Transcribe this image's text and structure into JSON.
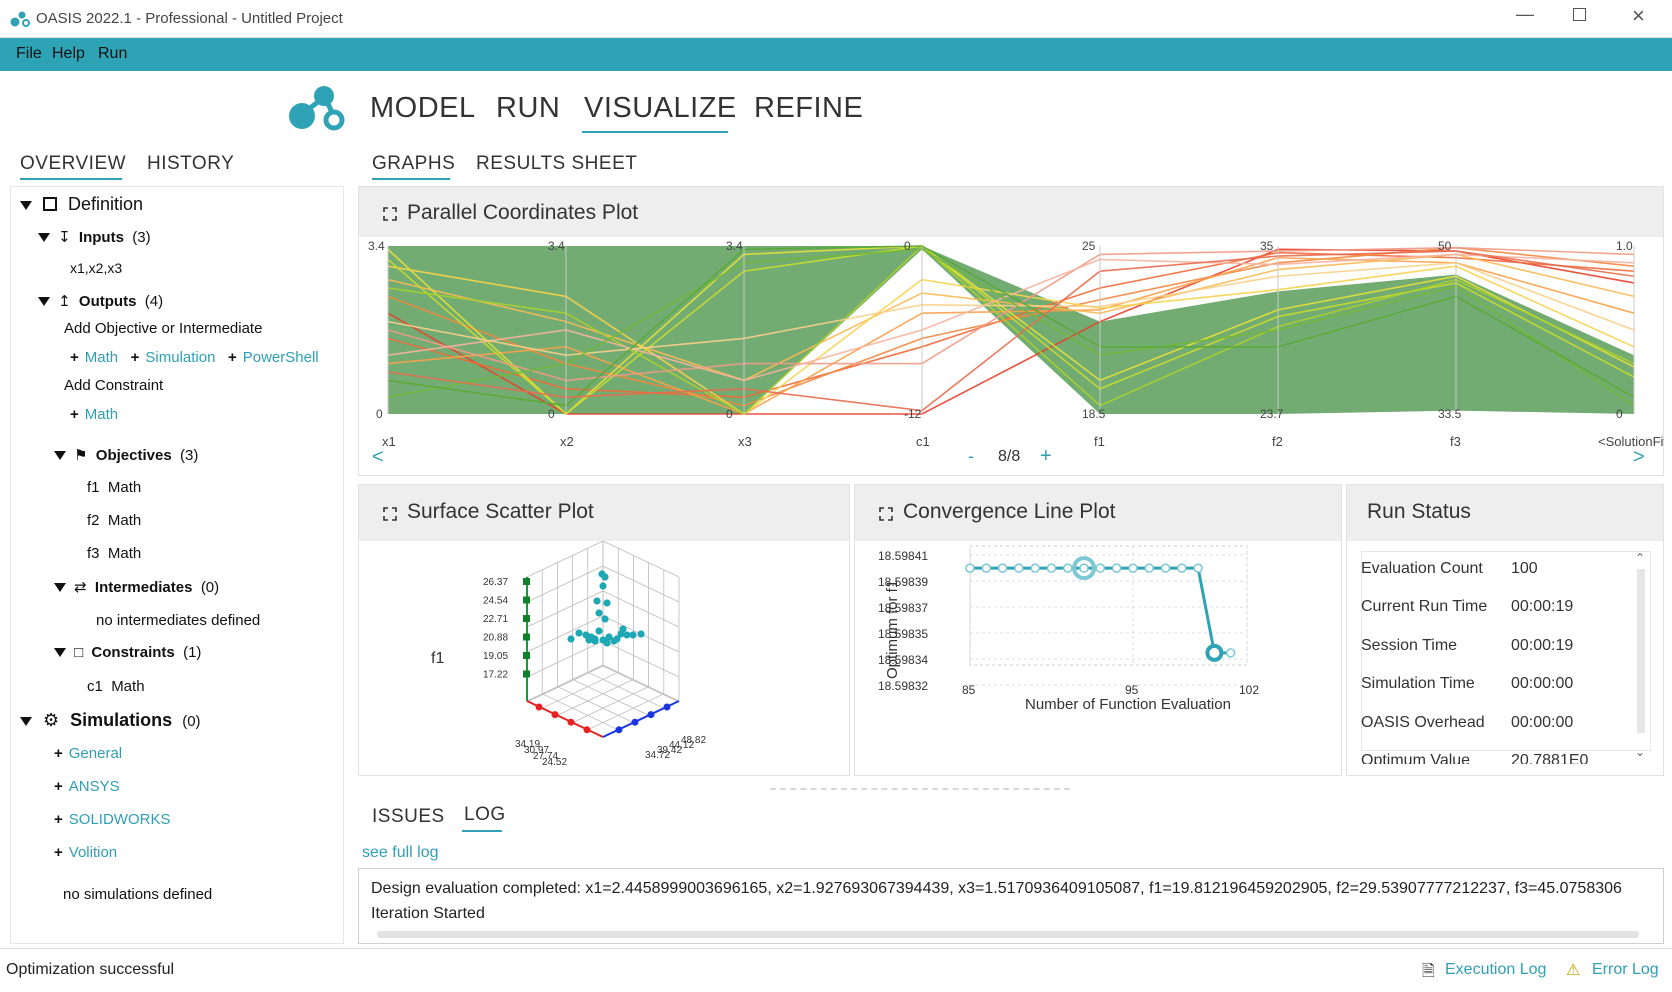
{
  "window": {
    "title": "OASIS 2022.1 - Professional - Untitled Project",
    "controls": [
      "minimize-icon",
      "maximize-icon",
      "close-icon"
    ]
  },
  "menu": [
    "File",
    "Help",
    "Run"
  ],
  "nav": {
    "tabs": [
      "MODEL",
      "RUN",
      "VISUALIZE",
      "REFINE"
    ],
    "active": "VISUALIZE"
  },
  "left_tabs": {
    "tabs": [
      "OVERVIEW",
      "HISTORY"
    ],
    "active": "OVERVIEW"
  },
  "tree": {
    "definition": "Definition",
    "inputs": "Inputs",
    "inputs_count": "(3)",
    "inputs_value": "x1,x2,x3",
    "outputs": "Outputs",
    "outputs_count": "(4)",
    "add_objective": "Add Objective or Intermediate",
    "objective_links": [
      "Math",
      "Simulation",
      "PowerShell"
    ],
    "add_constraint": "Add Constraint",
    "constraint_link": "Math",
    "objectives": "Objectives",
    "objectives_count": "(3)",
    "objective_items": [
      {
        "name": "f1",
        "type": "Math"
      },
      {
        "name": "f2",
        "type": "Math"
      },
      {
        "name": "f3",
        "type": "Math"
      }
    ],
    "intermediates": "Intermediates",
    "intermediates_count": "(0)",
    "intermediates_empty": "no intermediates defined",
    "constraints": "Constraints",
    "constraints_count": "(1)",
    "constraint_item": {
      "name": "c1",
      "type": "Math"
    },
    "simulations": "Simulations",
    "simulations_count": "(0)",
    "simulation_links": [
      "General",
      "ANSYS",
      "SOLIDWORKS",
      "Volition"
    ],
    "simulations_empty": "no simulations defined"
  },
  "main_tabs": {
    "tabs": [
      "GRAPHS",
      "RESULTS SHEET"
    ],
    "active": "GRAPHS"
  },
  "parallel": {
    "title": "Parallel Coordinates Plot",
    "axes": [
      {
        "label": "x1",
        "max": "3.4",
        "min": "0"
      },
      {
        "label": "x2",
        "max": "3.4",
        "min": "0"
      },
      {
        "label": "x3",
        "max": "3.4",
        "min": "0"
      },
      {
        "label": "c1",
        "max": "0",
        "min": "-12"
      },
      {
        "label": "f1",
        "max": "25",
        "min": "18.5"
      },
      {
        "label": "f2",
        "max": "35",
        "min": "23.7"
      },
      {
        "label": "f3",
        "max": "50",
        "min": "33.5"
      },
      {
        "label": "<SolutionFitn",
        "max": "1.0",
        "min": "0"
      }
    ],
    "pager": "8/8",
    "prev": "<",
    "next": ">",
    "minus": "-",
    "plus": "+"
  },
  "scatter": {
    "title": "Surface Scatter Plot",
    "zlabel": "f1",
    "z_ticks": [
      "26.37",
      "24.54",
      "22.71",
      "20.88",
      "19.05",
      "17.22"
    ],
    "x_ticks": [
      "34.19",
      "30.97",
      "27.74",
      "24.52"
    ],
    "y_ticks": [
      "48.82",
      "44.12",
      "39.42",
      "34.72"
    ]
  },
  "convergence": {
    "title": "Convergence Line Plot",
    "ylabel": "Optimum for f1",
    "xlabel": "Number of Function Evaluation",
    "y_ticks": [
      "18.59841",
      "18.59839",
      "18.59837",
      "18.59835",
      "18.59834",
      "18.59832"
    ],
    "x_ticks": [
      "85",
      "95",
      "102"
    ],
    "chart_data": {
      "type": "line",
      "x": [
        85,
        86,
        87,
        88,
        89,
        90,
        91,
        92,
        93,
        94,
        95,
        96,
        97,
        98,
        99,
        100,
        101
      ],
      "y": [
        18.5984,
        18.5984,
        18.5984,
        18.5984,
        18.5984,
        18.5984,
        18.5984,
        18.5984,
        18.5984,
        18.5984,
        18.5984,
        18.5984,
        18.5984,
        18.5984,
        18.5984,
        18.59833,
        18.59833
      ],
      "xlim": [
        85,
        102
      ],
      "ylim": [
        18.59832,
        18.59841
      ]
    }
  },
  "run_status": {
    "title": "Run Status",
    "rows": [
      {
        "label": "Evaluation Count",
        "value": "100"
      },
      {
        "label": "Current Run Time",
        "value": "00:00:19"
      },
      {
        "label": "Session Time",
        "value": "00:00:19"
      },
      {
        "label": "Simulation Time",
        "value": "00:00:00"
      },
      {
        "label": "OASIS Overhead",
        "value": "00:00:00"
      },
      {
        "label": "Optimum Value",
        "value": "20.7881E0"
      }
    ]
  },
  "bottom_tabs": {
    "tabs": [
      "ISSUES",
      "LOG"
    ],
    "active": "LOG"
  },
  "log": {
    "see_full": "see full log",
    "lines": [
      "Design evaluation completed: x1=2.4458999003696165, x2=1.927693067394439, x3=1.5170936409105087, f1=19.812196459202905, f2=29.53907777212237, f3=45.0758306",
      "Iteration Started"
    ]
  },
  "status": {
    "message": "Optimization successful",
    "execution_log": "Execution Log",
    "error_log": "Error Log"
  },
  "colors": {
    "accent": "#2fa3b6",
    "green_band": "#5a9e5a"
  }
}
